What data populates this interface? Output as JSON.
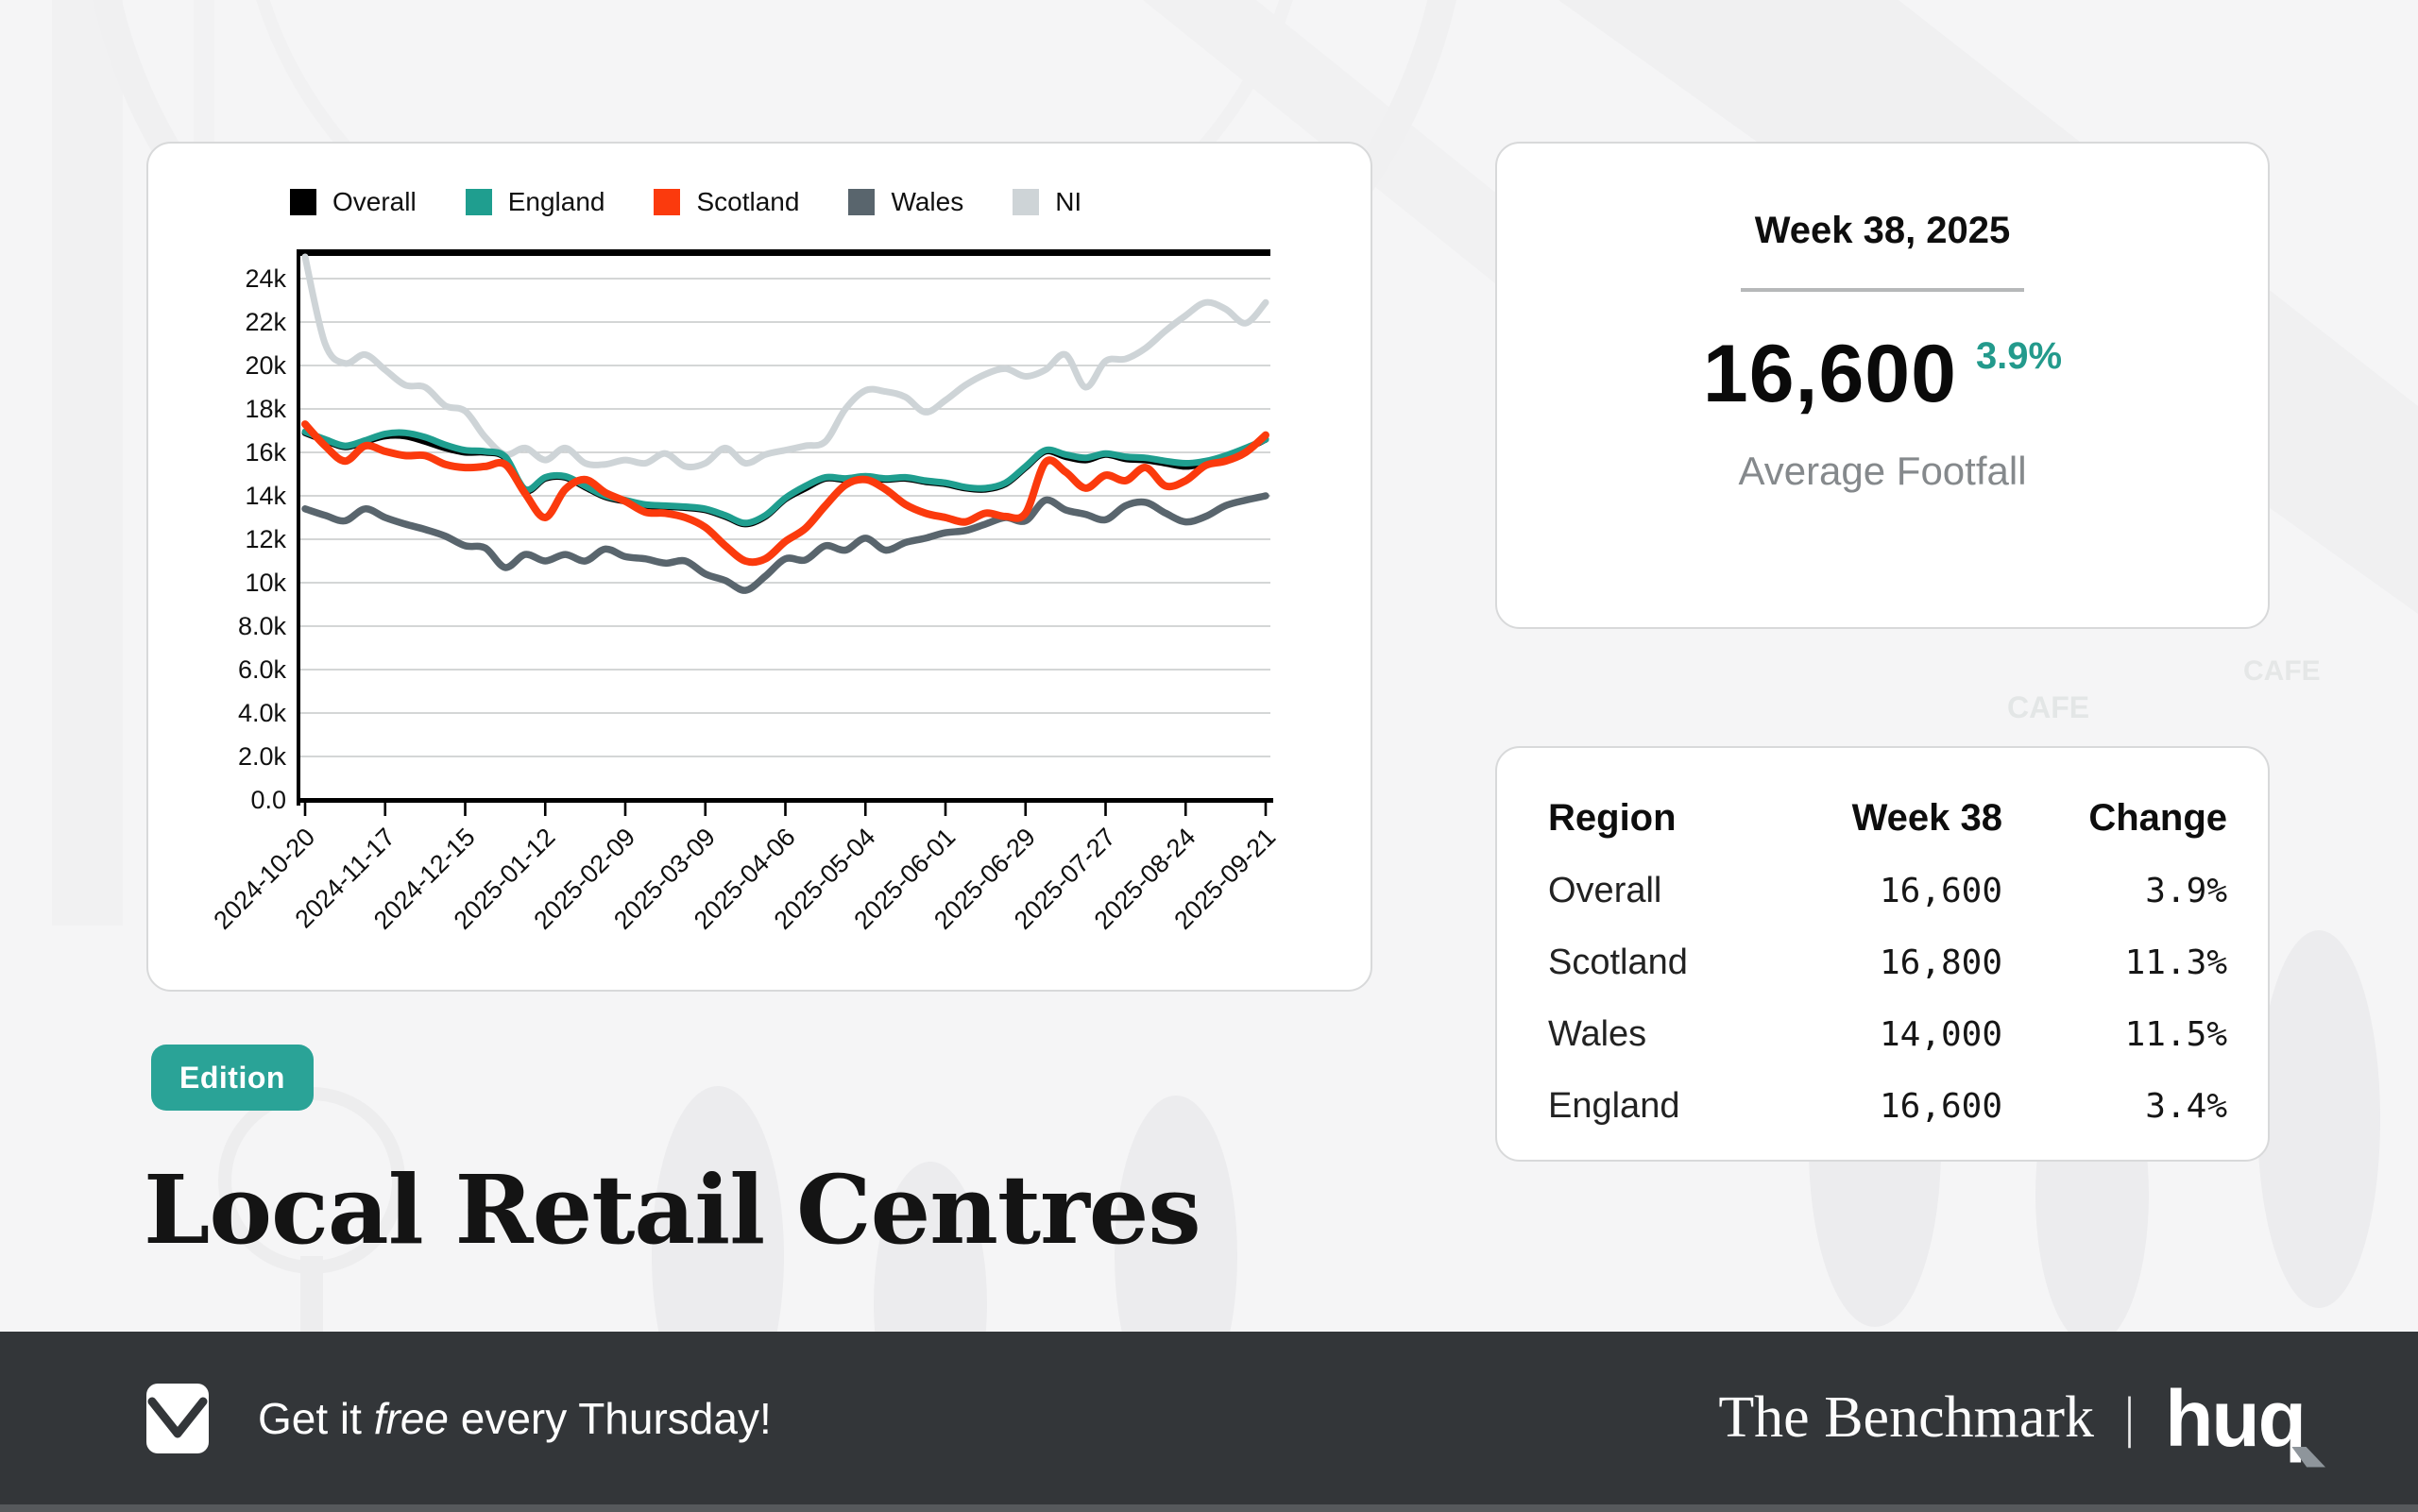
{
  "badge": "Edition",
  "title": "Local Retail Centres",
  "stats_card": {
    "period": "Week 38, 2025",
    "value": "16,600",
    "change": "3.9%",
    "label": "Average Footfall"
  },
  "table_card": {
    "headers": [
      "Region",
      "Week 38",
      "Change"
    ],
    "rows": [
      {
        "region": "Overall",
        "week38": "16,600",
        "change": "3.9%"
      },
      {
        "region": "Scotland",
        "week38": "16,800",
        "change": "11.3%"
      },
      {
        "region": "Wales",
        "week38": "14,000",
        "change": "11.5%"
      },
      {
        "region": "England",
        "week38": "16,600",
        "change": "3.4%"
      }
    ]
  },
  "footer": {
    "cta_prefix": "Get it ",
    "cta_italic": "free",
    "cta_suffix": " every Thursday!",
    "brand_serif": "The Benchmark",
    "brand_divider": "|",
    "brand_logo": "huq"
  },
  "background": {
    "cafe_sign": "CAFE"
  },
  "colors": {
    "teal": "#2aa397",
    "change_teal": "#239a8c",
    "scotland_red": "#fb3a0d",
    "wales_slate": "#59656d",
    "ni_gray": "#ced4d7",
    "overall_black": "#000000",
    "bar_dark": "#333639",
    "page_bg": "#f5f5f6"
  },
  "chart_data": {
    "type": "line",
    "title": "",
    "xlabel": "",
    "ylabel": "",
    "grid": true,
    "legend_position": "top-left",
    "ylim": [
      0,
      25200
    ],
    "y_ticks": [
      "0.0",
      "2.0k",
      "4.0k",
      "6.0k",
      "8.0k",
      "10k",
      "12k",
      "14k",
      "16k",
      "18k",
      "20k",
      "22k",
      "24k"
    ],
    "x_tick_labels": [
      "2024-10-20",
      "2024-11-17",
      "2024-12-15",
      "2025-01-12",
      "2025-02-09",
      "2025-03-09",
      "2025-04-06",
      "2025-05-04",
      "2025-06-01",
      "2025-06-29",
      "2025-07-27",
      "2025-08-24",
      "2025-09-21"
    ],
    "x": [
      "2024-10-20",
      "2024-10-27",
      "2024-11-03",
      "2024-11-10",
      "2024-11-17",
      "2024-11-24",
      "2024-12-01",
      "2024-12-08",
      "2024-12-15",
      "2024-12-22",
      "2024-12-29",
      "2025-01-05",
      "2025-01-12",
      "2025-01-19",
      "2025-01-26",
      "2025-02-02",
      "2025-02-09",
      "2025-02-16",
      "2025-02-23",
      "2025-03-02",
      "2025-03-09",
      "2025-03-16",
      "2025-03-23",
      "2025-03-30",
      "2025-04-06",
      "2025-04-13",
      "2025-04-20",
      "2025-04-27",
      "2025-05-04",
      "2025-05-11",
      "2025-05-18",
      "2025-05-25",
      "2025-06-01",
      "2025-06-08",
      "2025-06-15",
      "2025-06-22",
      "2025-06-29",
      "2025-07-06",
      "2025-07-13",
      "2025-07-20",
      "2025-07-27",
      "2025-08-03",
      "2025-08-10",
      "2025-08-17",
      "2025-08-24",
      "2025-08-31",
      "2025-09-07",
      "2025-09-14",
      "2025-09-21"
    ],
    "series": [
      {
        "name": "Overall",
        "color": "#000000",
        "values": [
          16900,
          16550,
          16250,
          16500,
          16750,
          16750,
          16500,
          16200,
          16000,
          16000,
          15750,
          14250,
          14800,
          14850,
          14400,
          13950,
          13750,
          13550,
          13500,
          13450,
          13350,
          13050,
          12700,
          13050,
          13850,
          14350,
          14800,
          14750,
          14850,
          14750,
          14800,
          14650,
          14550,
          14350,
          14300,
          14550,
          15300,
          16050,
          15800,
          15650,
          15900,
          15700,
          15650,
          15500,
          15350,
          15500,
          15800,
          16150,
          16600
        ]
      },
      {
        "name": "England",
        "color": "#1f9e8f",
        "values": [
          16950,
          16600,
          16300,
          16550,
          16850,
          16900,
          16700,
          16350,
          16100,
          16050,
          15800,
          14300,
          14850,
          14900,
          14450,
          14000,
          13800,
          13600,
          13550,
          13500,
          13400,
          13100,
          12750,
          13100,
          13900,
          14450,
          14850,
          14800,
          14900,
          14800,
          14850,
          14700,
          14600,
          14400,
          14350,
          14600,
          15350,
          16100,
          15900,
          15750,
          15950,
          15800,
          15750,
          15600,
          15500,
          15600,
          15850,
          16200,
          16600
        ]
      },
      {
        "name": "Scotland",
        "color": "#fb3a0d",
        "values": [
          17300,
          16300,
          15600,
          16300,
          16050,
          15850,
          15850,
          15450,
          15300,
          15350,
          15450,
          14100,
          13000,
          14300,
          14750,
          14150,
          13750,
          13250,
          13200,
          13000,
          12550,
          11700,
          11000,
          11100,
          11900,
          12500,
          13550,
          14500,
          14750,
          14300,
          13600,
          13200,
          13000,
          12800,
          13200,
          13050,
          13200,
          15550,
          15100,
          14350,
          14950,
          14700,
          15300,
          14450,
          14700,
          15400,
          15600,
          16000,
          16800
        ]
      },
      {
        "name": "Wales",
        "color": "#59656d",
        "values": [
          13400,
          13100,
          12850,
          13400,
          13000,
          12700,
          12450,
          12150,
          11700,
          11600,
          10700,
          11300,
          11000,
          11300,
          11000,
          11550,
          11200,
          11100,
          10900,
          11000,
          10400,
          10100,
          9650,
          10300,
          11100,
          11050,
          11700,
          11500,
          12050,
          11500,
          11850,
          12050,
          12300,
          12400,
          12700,
          13000,
          12850,
          13800,
          13350,
          13150,
          12900,
          13550,
          13700,
          13200,
          12800,
          13050,
          13550,
          13800,
          14000
        ]
      },
      {
        "name": "NI",
        "color": "#ced4d7",
        "values": [
          25000,
          21000,
          20100,
          20500,
          19800,
          19100,
          19000,
          18150,
          17900,
          16700,
          15900,
          16200,
          15650,
          16200,
          15500,
          15450,
          15650,
          15500,
          15950,
          15350,
          15500,
          16200,
          15500,
          15900,
          16100,
          16300,
          16500,
          18000,
          18850,
          18800,
          18550,
          17850,
          18400,
          19100,
          19600,
          19850,
          19500,
          19800,
          20500,
          19000,
          20200,
          20300,
          20800,
          21600,
          22300,
          22900,
          22600,
          21950,
          22900
        ]
      }
    ]
  }
}
